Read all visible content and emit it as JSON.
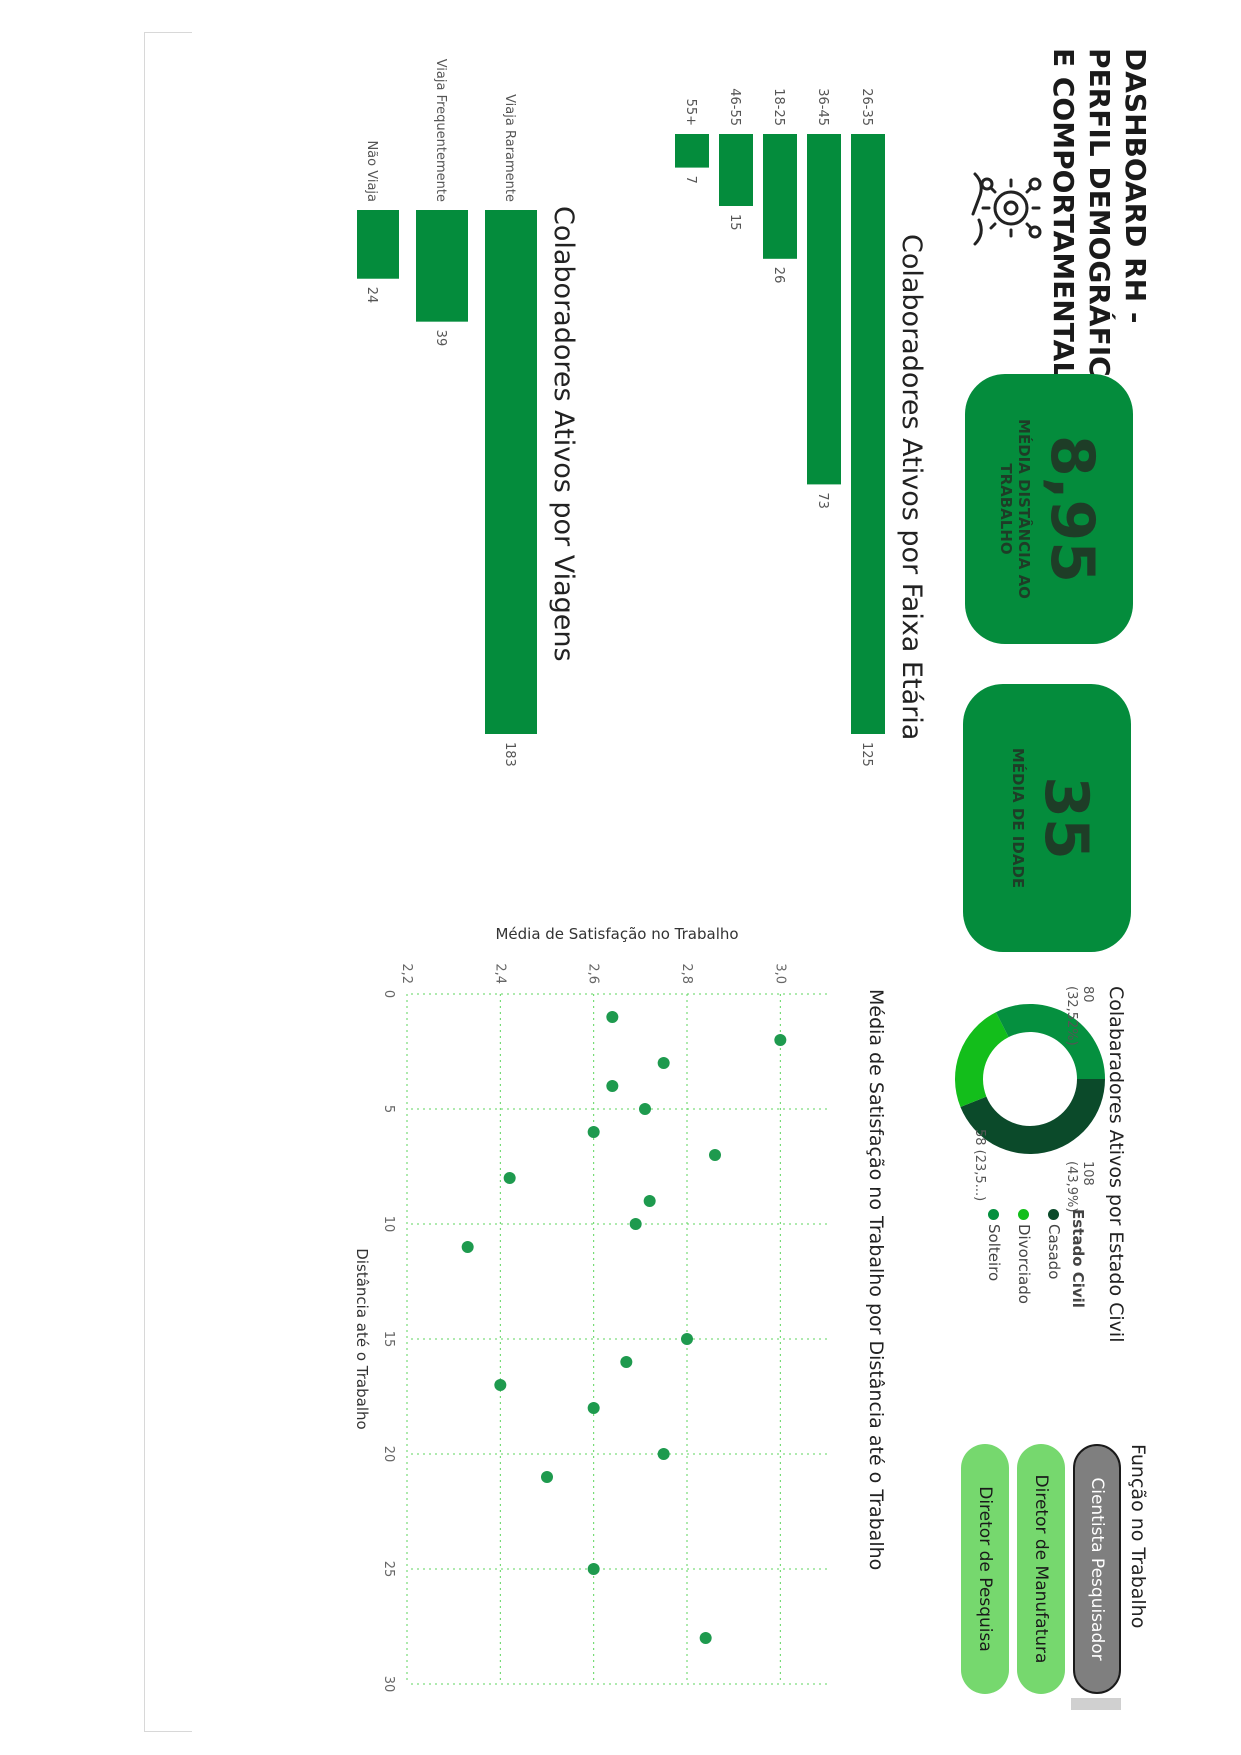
{
  "header": {
    "title_lines": [
      "DASHBOARD RH -",
      "PERFIL DEMOGRÁFICO",
      "E COMPORTAMENTAL"
    ],
    "logo_icon": "hr-handshake-gear-icon"
  },
  "kpis": [
    {
      "value": "8,95",
      "label_lines": [
        "MÉDIA DISTÂNCIA AO",
        "TRABALHO"
      ]
    },
    {
      "value": "35",
      "label_lines": [
        "MÉDIA DE IDADE"
      ]
    }
  ],
  "donut": {
    "title": "Colabaradores Ativos por Estado Civil",
    "legend_title": "Estado Civil",
    "labels": {
      "casado": "108\n(43,9%)",
      "divorciado": "58 (23,5...)",
      "solteiro": "80\n(32,52%)"
    }
  },
  "filter": {
    "title": "Função no Trabalho",
    "options": [
      "Cientista Pesquisador",
      "Diretor de Manufatura",
      "Diretor de Pesquisa"
    ],
    "selected": "Cientista Pesquisador"
  },
  "colors": {
    "bar": "#048c3c",
    "casado": "#0b4a2a",
    "divorciado": "#13be1b",
    "solteiro": "#05903f",
    "pill_green": "#76d86e",
    "pill_selected": "#7f7f7f",
    "grid": "#5cd65c"
  },
  "chart_data": [
    {
      "type": "bar",
      "title": "Colaboradores Ativos por Faixa Etária",
      "categories": [
        "26-35",
        "36-45",
        "18-25",
        "46-55",
        "55+"
      ],
      "values": [
        125,
        73,
        26,
        15,
        7
      ]
    },
    {
      "type": "bar",
      "title": "Colaboradores Ativos por Viagens",
      "categories": [
        "Viaja Raramente",
        "Viaja Frequentemente",
        "Não Viaja"
      ],
      "values": [
        183,
        39,
        24
      ]
    },
    {
      "type": "pie",
      "title": "Colabaradores Ativos por Estado Civil",
      "categories": [
        "Casado",
        "Divorciado",
        "Solteiro"
      ],
      "values": [
        108,
        58,
        80
      ],
      "legend_title": "Estado Civil"
    },
    {
      "type": "scatter",
      "title": "Média de Satisfação no Trabalho por Distância até o Trabalho",
      "xlabel": "Distância até o Trabalho",
      "ylabel": "Média de Satisfação no Trabalho",
      "xlim": [
        0,
        30
      ],
      "ylim": [
        2.2,
        3.1
      ],
      "xticks": [
        "0",
        "5",
        "10",
        "15",
        "20",
        "25",
        "30"
      ],
      "yticks": [
        "2,2",
        "2,4",
        "2,6",
        "2,8",
        "3,0"
      ],
      "grid": true,
      "x": [
        1,
        2,
        3,
        4,
        5,
        6,
        7,
        8,
        9,
        10,
        11,
        15,
        16,
        17,
        18,
        20,
        21,
        25,
        28
      ],
      "y": [
        2.64,
        3.0,
        2.75,
        2.64,
        2.71,
        2.6,
        2.86,
        2.42,
        2.72,
        2.69,
        2.33,
        2.8,
        2.67,
        2.4,
        2.6,
        2.75,
        2.5,
        2.6,
        2.84
      ]
    }
  ]
}
